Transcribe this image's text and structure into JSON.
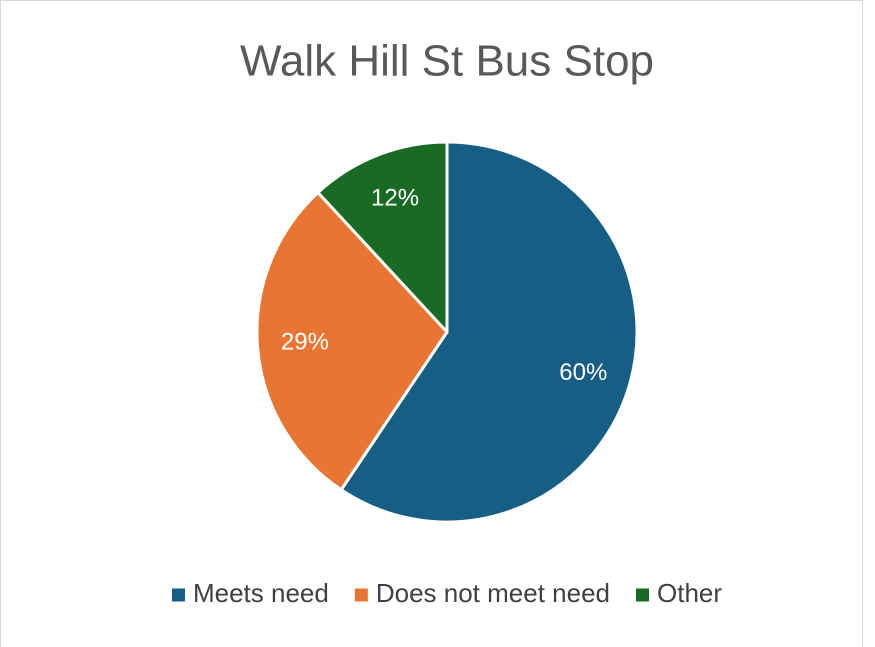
{
  "chart_data": {
    "type": "pie",
    "title": "Walk Hill St Bus Stop",
    "categories": [
      "Meets need",
      "Does not meet need",
      "Other"
    ],
    "values": [
      60,
      29,
      12
    ],
    "value_labels": [
      "60%",
      "29%",
      "12%"
    ],
    "colors": [
      "#165e84",
      "#e97532",
      "#196b24"
    ],
    "legend": "bottom"
  }
}
